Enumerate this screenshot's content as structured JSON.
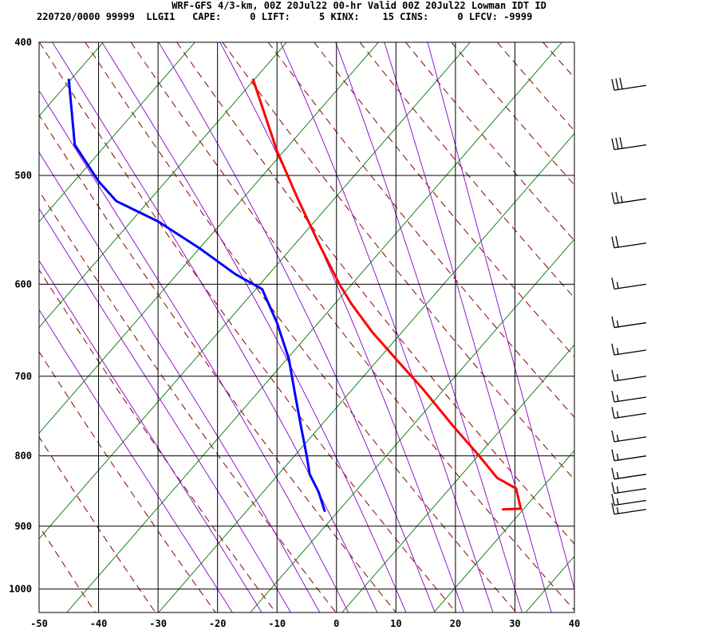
{
  "chart_data": {
    "type": "line",
    "subtype": "skew-t log-p sounding",
    "title": "WRF-GFS 4/3-km, 00Z 20Jul22 00-hr Valid 00Z 20Jul22 Lowman IDT ID",
    "subtitle": "220720/0000 99999  LLGI1   CAPE:     0 LIFT:     5 KINX:    15 CINS:     0 LFCV: -9999",
    "xlabel": "",
    "ylabel": "",
    "y_scale": "log-pressure (inverted)",
    "xlim": [
      -50,
      40
    ],
    "ylim": [
      1040,
      400
    ],
    "x_ticks": [
      -50,
      -40,
      -30,
      -20,
      -10,
      0,
      10,
      20,
      30,
      40
    ],
    "pressure_ticks": [
      400,
      500,
      600,
      700,
      800,
      900,
      1000
    ],
    "grid": true,
    "background_lines": {
      "dry_adiabats_color": "#8b0000",
      "moist_adiabats_color": "#8800cc",
      "mixing_ratio_color": "#007700",
      "isotherm_color": "#000000"
    },
    "series": [
      {
        "role": "temperature",
        "color": "#ff0000",
        "points": [
          {
            "p": 875,
            "t": 28.0
          },
          {
            "p": 874,
            "t": 31.0
          },
          {
            "p": 845,
            "t": 30.2
          },
          {
            "p": 830,
            "t": 27.0
          },
          {
            "p": 800,
            "t": 24.0
          },
          {
            "p": 760,
            "t": 19.5
          },
          {
            "p": 715,
            "t": 14.5
          },
          {
            "p": 680,
            "t": 10.0
          },
          {
            "p": 650,
            "t": 6.0
          },
          {
            "p": 620,
            "t": 2.5
          },
          {
            "p": 600,
            "t": 0.5
          },
          {
            "p": 560,
            "t": -3.0
          },
          {
            "p": 520,
            "t": -6.5
          },
          {
            "p": 480,
            "t": -10.0
          },
          {
            "p": 426,
            "t": -14.0
          }
        ]
      },
      {
        "role": "dewpoint",
        "color": "#0000ff",
        "points": [
          {
            "p": 877,
            "t": -2.0
          },
          {
            "p": 850,
            "t": -3.0
          },
          {
            "p": 825,
            "t": -4.5
          },
          {
            "p": 800,
            "t": -5.0
          },
          {
            "p": 760,
            "t": -6.0
          },
          {
            "p": 720,
            "t": -7.0
          },
          {
            "p": 680,
            "t": -8.0
          },
          {
            "p": 640,
            "t": -10.0
          },
          {
            "p": 605,
            "t": -12.5
          },
          {
            "p": 590,
            "t": -17.0
          },
          {
            "p": 565,
            "t": -23.0
          },
          {
            "p": 540,
            "t": -30.0
          },
          {
            "p": 522,
            "t": -37.0
          },
          {
            "p": 505,
            "t": -40.0
          },
          {
            "p": 475,
            "t": -44.0
          },
          {
            "p": 426,
            "t": -45.0
          }
        ]
      }
    ],
    "wind_barbs_side": "right",
    "wind_barb_color": "#000000",
    "wind_barbs": [
      {
        "p": 430,
        "flags": 0,
        "full": 3,
        "half": 0
      },
      {
        "p": 475,
        "flags": 0,
        "full": 3,
        "half": 0
      },
      {
        "p": 520,
        "flags": 0,
        "full": 2,
        "half": 1
      },
      {
        "p": 560,
        "flags": 0,
        "full": 2,
        "half": 0
      },
      {
        "p": 600,
        "flags": 0,
        "full": 1,
        "half": 1
      },
      {
        "p": 640,
        "flags": 0,
        "full": 1,
        "half": 1
      },
      {
        "p": 670,
        "flags": 0,
        "full": 1,
        "half": 1
      },
      {
        "p": 700,
        "flags": 0,
        "full": 1,
        "half": 1
      },
      {
        "p": 725,
        "flags": 0,
        "full": 1,
        "half": 1
      },
      {
        "p": 745,
        "flags": 0,
        "full": 1,
        "half": 1
      },
      {
        "p": 775,
        "flags": 0,
        "full": 1,
        "half": 1
      },
      {
        "p": 800,
        "flags": 0,
        "full": 1,
        "half": 1
      },
      {
        "p": 825,
        "flags": 0,
        "full": 1,
        "half": 1
      },
      {
        "p": 845,
        "flags": 0,
        "full": 1,
        "half": 1
      },
      {
        "p": 862,
        "flags": 0,
        "full": 1,
        "half": 1
      },
      {
        "p": 875,
        "flags": 0,
        "full": 1,
        "half": 1
      }
    ]
  }
}
